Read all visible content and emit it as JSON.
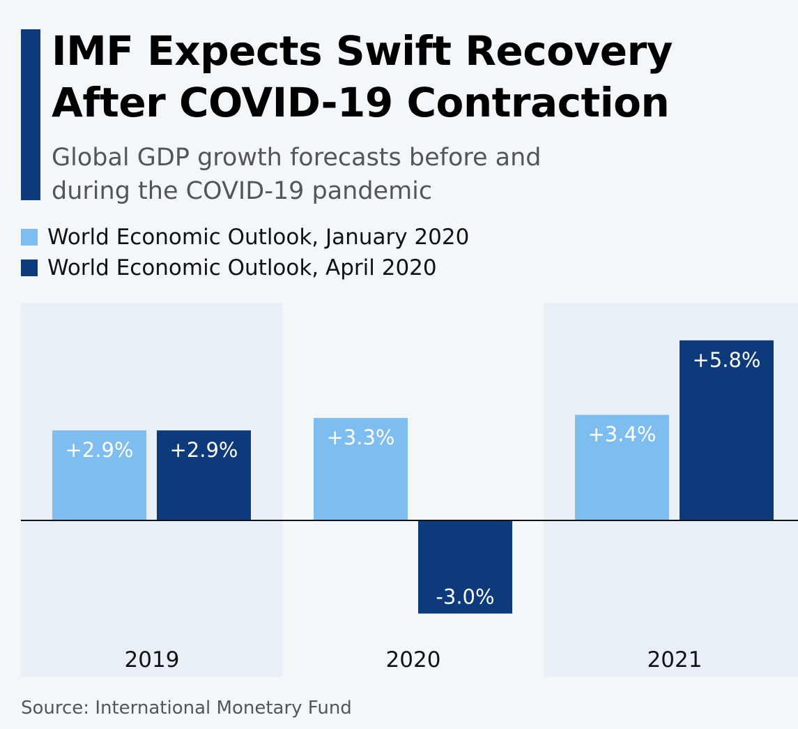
{
  "title": "IMF Expects Swift Recovery After COVID-19 Contraction",
  "subtitle": "Global GDP growth forecasts before and during the COVID-19 pandemic",
  "source": "Source: International Monetary Fund",
  "chart_data": {
    "type": "bar",
    "categories": [
      "2019",
      "2020",
      "2021"
    ],
    "series": [
      {
        "name": "World Economic Outlook, January 2020",
        "values": [
          2.9,
          3.3,
          3.4
        ],
        "labels": [
          "+2.9%",
          "+3.3%",
          "+3.4%"
        ],
        "color": "#7dbdf0"
      },
      {
        "name": "World Economic Outlook, April 2020",
        "values": [
          2.9,
          -3.0,
          5.8
        ],
        "labels": [
          "+2.9%",
          "-3.0%",
          "+5.8%"
        ],
        "color": "#0d3a7a"
      }
    ],
    "legend": "top-left",
    "grid": false,
    "unit": "%"
  }
}
